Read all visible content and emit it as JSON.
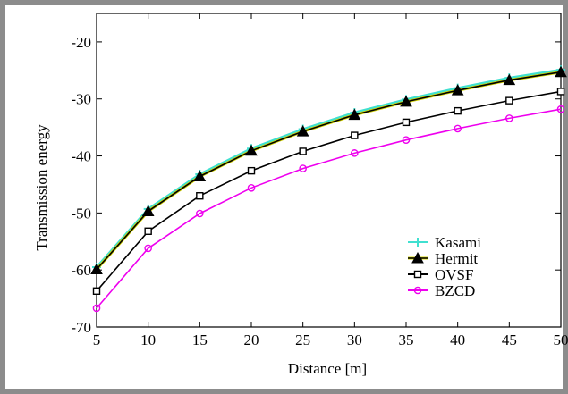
{
  "chart_data": {
    "type": "line",
    "xlabel": "Distance [m]",
    "ylabel": "Transmission energy",
    "xlim": [
      5,
      50
    ],
    "ylim": [
      -70,
      -15
    ],
    "x_ticks": [
      5,
      10,
      15,
      20,
      25,
      30,
      35,
      40,
      45,
      50
    ],
    "y_ticks": [
      -70,
      -60,
      -50,
      -40,
      -30,
      -20
    ],
    "grid": false,
    "legend_position": "bottom-right",
    "x": [
      5,
      10,
      15,
      20,
      25,
      30,
      35,
      40,
      45,
      50
    ],
    "series": [
      {
        "name": "Kasami",
        "color": "#40e0d0",
        "marker": "plus",
        "values": [
          -59.5,
          -49.3,
          -43.2,
          -38.7,
          -35.3,
          -32.4,
          -30.1,
          -28.1,
          -26.3,
          -24.9
        ]
      },
      {
        "name": "Hermit",
        "color": "#000000",
        "line_color": "#d4d400",
        "marker": "filled-triangle",
        "values": [
          -59.9,
          -49.7,
          -43.6,
          -39.1,
          -35.7,
          -32.8,
          -30.5,
          -28.5,
          -26.7,
          -25.3
        ]
      },
      {
        "name": "OVSF",
        "color": "#000000",
        "marker": "square",
        "values": [
          -63.7,
          -53.2,
          -47.0,
          -42.6,
          -39.2,
          -36.4,
          -34.1,
          -32.1,
          -30.3,
          -28.7
        ]
      },
      {
        "name": "BZCD",
        "color": "#ee00ee",
        "marker": "circle",
        "values": [
          -66.7,
          -56.2,
          -50.1,
          -45.6,
          -42.2,
          -39.5,
          -37.2,
          -35.2,
          -33.4,
          -31.8
        ]
      }
    ]
  }
}
